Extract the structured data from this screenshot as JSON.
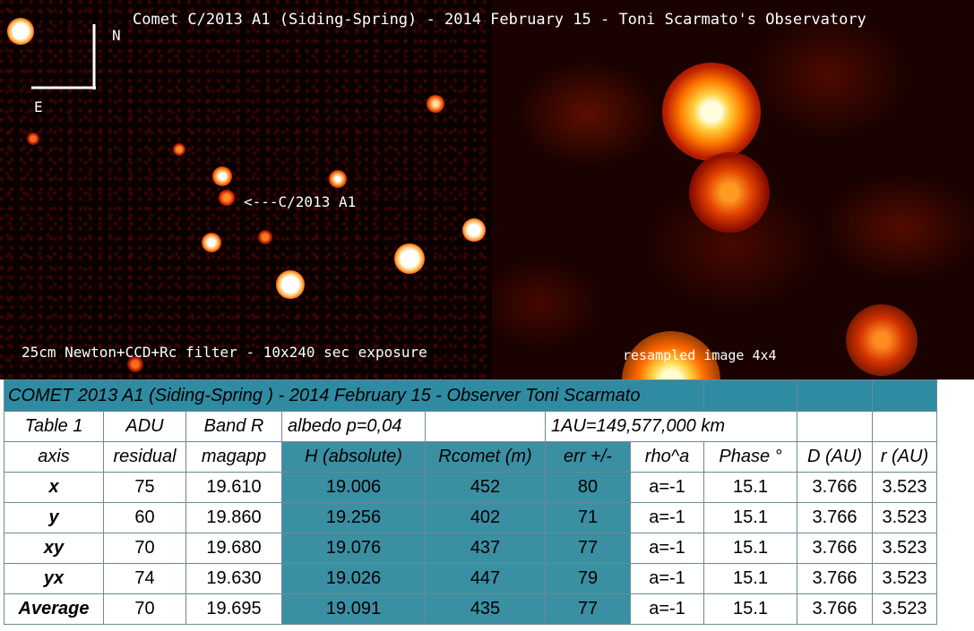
{
  "image": {
    "title": "Comet C/2013 A1 (Siding-Spring) - 2014 February 15 - Toni Scarmato's Observatory",
    "compass_north": "N",
    "compass_east": "E",
    "comet_marker": "<---C/2013 A1",
    "equipment_caption": "25cm Newton+CCD+Rc filter - 10x240 sec exposure",
    "resampled_caption": "resampled image 4x4",
    "colors": {
      "background": "#000000",
      "star_core": "#ffffff",
      "star_glow": "#ff4a00"
    }
  },
  "table": {
    "title": "COMET 2013 A1 (Siding-Spring ) - 2014 February 15 - Observer  Toni Scarmato",
    "header1": {
      "c0": "Table 1",
      "c1": "ADU",
      "c2": "Band R",
      "c3": "albedo p=0,04",
      "c5": "1AU=149,577,000 km"
    },
    "header2": {
      "c0": "axis",
      "c1": "residual",
      "c2": "magapp",
      "c3": "H (absolute)",
      "c4": "Rcomet (m)",
      "c5": "err +/-",
      "c6": "rho^a",
      "c7": "Phase °",
      "c8": "D (AU)",
      "c9": "r (AU)"
    },
    "rows": [
      [
        "x",
        "75",
        "19.610",
        "19.006",
        "452",
        "80",
        "a=-1",
        "15.1",
        "3.766",
        "3.523"
      ],
      [
        "y",
        "60",
        "19.860",
        "19.256",
        "402",
        "71",
        "a=-1",
        "15.1",
        "3.766",
        "3.523"
      ],
      [
        "xy",
        "70",
        "19.680",
        "19.076",
        "437",
        "77",
        "a=-1",
        "15.1",
        "3.766",
        "3.523"
      ],
      [
        "yx",
        "74",
        "19.630",
        "19.026",
        "447",
        "79",
        "a=-1",
        "15.1",
        "3.766",
        "3.523"
      ],
      [
        "Average",
        "70",
        "19.695",
        "19.091",
        "435",
        "77",
        "a=-1",
        "15.1",
        "3.766",
        "3.523"
      ]
    ],
    "colors": {
      "title_bg": "#2f8ba1",
      "highlight_bg": "#3b8fa3",
      "border": "#6a8a93"
    }
  }
}
